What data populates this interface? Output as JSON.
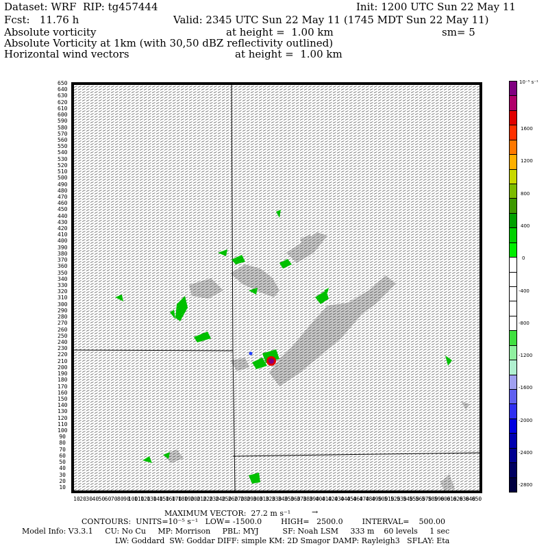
{
  "header": {
    "dataset": "Dataset: WRF  RIP: tg457444",
    "init": "Init: 1200 UTC Sun 22 May 11",
    "fcst": "Fcst:   11.76 h",
    "valid": "Valid: 2345 UTC Sun 22 May 11 (1745 MDT Sun 22 May 11)",
    "line3_left": "Absolute vorticity",
    "line3_mid": "at height =  1.00 km",
    "line3_right": "sm= 5",
    "line4": "Absolute Vorticity at 1km (with 30,50 dBZ reflectivity outlined)",
    "line5_left": "Horizontal wind vectors",
    "line5_mid": "at height =  1.00 km"
  },
  "y_axis_labels": [
    "650",
    "640",
    "630",
    "620",
    "610",
    "600",
    "590",
    "580",
    "570",
    "560",
    "550",
    "540",
    "530",
    "520",
    "510",
    "500",
    "490",
    "480",
    "470",
    "460",
    "450",
    "440",
    "430",
    "420",
    "410",
    "400",
    "390",
    "380",
    "370",
    "360",
    "350",
    "340",
    "330",
    "320",
    "310",
    "300",
    "290",
    "280",
    "270",
    "260",
    "250",
    "240",
    "230",
    "220",
    "210",
    "200",
    "190",
    "180",
    "170",
    "160",
    "150",
    "140",
    "130",
    "120",
    "110",
    "100",
    "90",
    "80",
    "70",
    "60",
    "50",
    "40",
    "30",
    "20",
    "10"
  ],
  "x_axis_labels": [
    "10",
    "20",
    "30",
    "40",
    "50",
    "60",
    "70",
    "80",
    "90",
    "100",
    "110",
    "120",
    "130",
    "140",
    "150",
    "160",
    "170",
    "180",
    "190",
    "200",
    "210",
    "220",
    "230",
    "240",
    "250",
    "260",
    "270",
    "280",
    "290",
    "300",
    "310",
    "320",
    "330",
    "340",
    "350",
    "360",
    "370",
    "380",
    "390",
    "400",
    "410",
    "420",
    "430",
    "440",
    "450",
    "460",
    "470",
    "480",
    "490",
    "500",
    "510",
    "520",
    "530",
    "540",
    "550",
    "560",
    "570",
    "580",
    "590",
    "600",
    "610",
    "620",
    "630",
    "640",
    "650"
  ],
  "colorbar": {
    "unit": "10⁻⁵ s⁻¹",
    "labels": [
      "1600",
      "1200",
      "800",
      "400",
      "0",
      "-400",
      "-800",
      "-1200",
      "-1600",
      "-2000",
      "-2400",
      "-2800"
    ],
    "colors": [
      "#800080",
      "#b0006a",
      "#e00000",
      "#ff3000",
      "#ff7800",
      "#ffb000",
      "#c8d800",
      "#7cbc00",
      "#3c9800",
      "#00a000",
      "#00d000",
      "#00ee00",
      "#ffffff",
      "#ffffff",
      "#ffffff",
      "#ffffff",
      "#ffffff",
      "#40e040",
      "#90f0a0",
      "#b0f0d0",
      "#a0a0f0",
      "#6060f0",
      "#3030f0",
      "#0000e0",
      "#0000b0",
      "#000090",
      "#000060",
      "#000040"
    ]
  },
  "map_colors": {
    "reflectivity_shade": "#c8c8c8",
    "vort_positive": "#00c000",
    "vort_strong": "#800080",
    "vort_negative": "#2040ff"
  },
  "footer": {
    "max_vector": "MAXIMUM VECTOR:  27.2 m s⁻¹",
    "contours": "CONTOURS:  UNITS=10⁻⁵ s⁻¹   LOW= -1500.0        HIGH=   2500.0        INTERVAL=    500.00",
    "model_info": "Model Info: V3.3.1     CU: No Cu     MP: Morrison     PBL: MYJ          SF: Noah LSM     333 m    60 levels     1 sec",
    "physics": "LW: Goddard  SW: Goddar DIFF: simple KM: 2D Smagor DAMP: Rayleigh3   SFLAY: Eta"
  }
}
